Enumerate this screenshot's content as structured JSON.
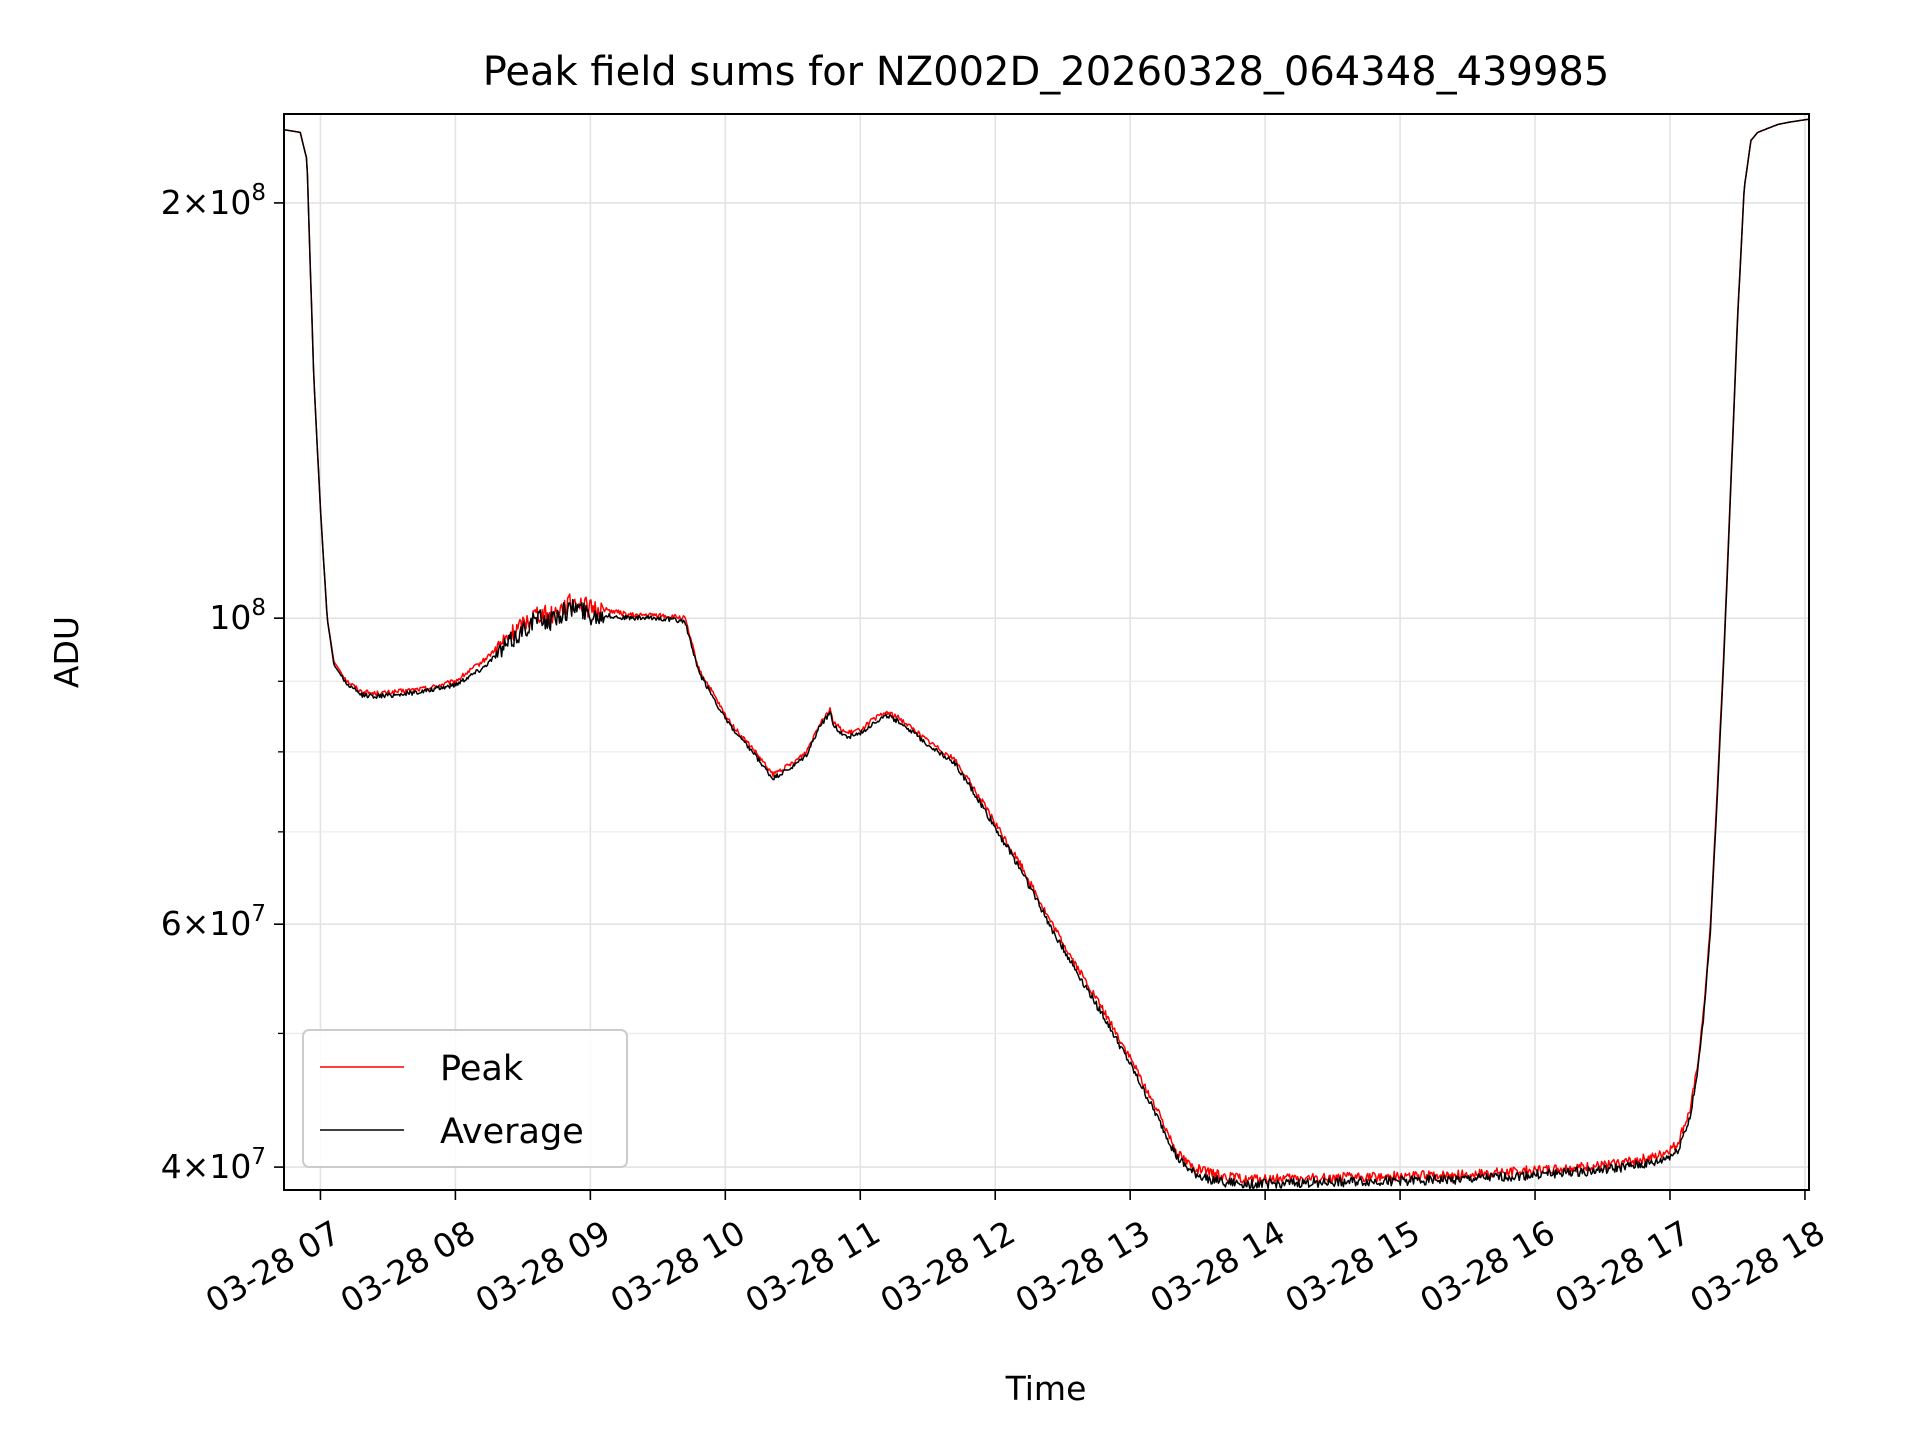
{
  "chart_data": {
    "type": "line",
    "title": "Peak field sums for NZ002D_20260328_064348_439985",
    "xlabel": "Time",
    "ylabel": "ADU",
    "yscale": "log",
    "ylim": [
      38500000,
      232000000
    ],
    "xlim": [
      6.73,
      18.03
    ],
    "grid": true,
    "legend_position": "lower-left",
    "x_ticks": [
      {
        "value": 7,
        "label": "03-28 07"
      },
      {
        "value": 8,
        "label": "03-28 08"
      },
      {
        "value": 9,
        "label": "03-28 09"
      },
      {
        "value": 10,
        "label": "03-28 10"
      },
      {
        "value": 11,
        "label": "03-28 11"
      },
      {
        "value": 12,
        "label": "03-28 12"
      },
      {
        "value": 13,
        "label": "03-28 13"
      },
      {
        "value": 14,
        "label": "03-28 14"
      },
      {
        "value": 15,
        "label": "03-28 15"
      },
      {
        "value": 16,
        "label": "03-28 16"
      },
      {
        "value": 17,
        "label": "03-28 17"
      },
      {
        "value": 18,
        "label": "03-28 18"
      }
    ],
    "y_major_ticks": [
      {
        "value": 40000000,
        "mantissa": "4",
        "exponent": "7"
      },
      {
        "value": 60000000,
        "mantissa": "6",
        "exponent": "7"
      },
      {
        "value": 100000000,
        "mantissa": "",
        "exponent": "8"
      },
      {
        "value": 200000000,
        "mantissa": "2",
        "exponent": "8"
      }
    ],
    "y_minor_ticks": [
      50000000,
      70000000,
      80000000,
      90000000
    ],
    "series": [
      {
        "name": "Peak",
        "color": "#ff0000",
        "x": [
          6.73,
          6.85,
          6.9,
          6.95,
          7.0,
          7.05,
          7.1,
          7.2,
          7.3,
          7.4,
          7.5,
          7.6,
          7.8,
          8.0,
          8.2,
          8.3,
          8.4,
          8.5,
          8.6,
          8.7,
          8.8,
          8.9,
          9.0,
          9.1,
          9.2,
          9.3,
          9.5,
          9.7,
          9.75,
          9.8,
          9.9,
          10.0,
          10.1,
          10.2,
          10.35,
          10.5,
          10.6,
          10.7,
          10.78,
          10.8,
          10.9,
          11.0,
          11.1,
          11.2,
          11.3,
          11.5,
          11.7,
          11.85,
          12.0,
          12.2,
          12.4,
          12.6,
          12.8,
          13.0,
          13.2,
          13.35,
          13.45,
          13.55,
          13.7,
          13.85,
          14.0,
          14.5,
          15.0,
          15.5,
          16.0,
          16.5,
          16.9,
          17.05,
          17.15,
          17.2,
          17.25,
          17.3,
          17.35,
          17.4,
          17.45,
          17.5,
          17.55,
          17.6,
          17.65,
          17.7,
          17.75,
          17.8,
          17.9,
          18.03
        ],
        "y": [
          226000000,
          225000000,
          215000000,
          150000000,
          120000000,
          100000000,
          93000000,
          90000000,
          88500000,
          88200000,
          88300000,
          88500000,
          89000000,
          90000000,
          93000000,
          95000000,
          97000000,
          99000000,
          101000000,
          100500000,
          102000000,
          103000000,
          101500000,
          101500000,
          101000000,
          100500000,
          100500000,
          100000000,
          96000000,
          92000000,
          88500000,
          85000000,
          82500000,
          80500000,
          77000000,
          78500000,
          80000000,
          84000000,
          86000000,
          84000000,
          82500000,
          83000000,
          84500000,
          85500000,
          84500000,
          81500000,
          79000000,
          75000000,
          71000000,
          66000000,
          60500000,
          56000000,
          52000000,
          48000000,
          44000000,
          41000000,
          40100000,
          39700000,
          39400000,
          39200000,
          39200000,
          39300000,
          39400000,
          39500000,
          39800000,
          40100000,
          40700000,
          41500000,
          44000000,
          47000000,
          52000000,
          60000000,
          75000000,
          95000000,
          125000000,
          165000000,
          205000000,
          222000000,
          225000000,
          226000000,
          227000000,
          228000000,
          229000000,
          230000000
        ]
      },
      {
        "name": "Average",
        "color": "#000000",
        "x": [
          6.73,
          6.85,
          6.9,
          6.95,
          7.0,
          7.05,
          7.1,
          7.2,
          7.3,
          7.4,
          7.5,
          7.6,
          7.8,
          8.0,
          8.2,
          8.3,
          8.4,
          8.5,
          8.6,
          8.7,
          8.8,
          8.9,
          9.0,
          9.1,
          9.2,
          9.3,
          9.5,
          9.7,
          9.75,
          9.8,
          9.9,
          10.0,
          10.1,
          10.2,
          10.35,
          10.5,
          10.6,
          10.7,
          10.78,
          10.8,
          10.9,
          11.0,
          11.1,
          11.2,
          11.3,
          11.5,
          11.7,
          11.85,
          12.0,
          12.2,
          12.4,
          12.6,
          12.8,
          13.0,
          13.2,
          13.35,
          13.45,
          13.55,
          13.7,
          13.85,
          14.0,
          14.5,
          15.0,
          15.5,
          16.0,
          16.5,
          16.9,
          17.05,
          17.15,
          17.2,
          17.25,
          17.3,
          17.35,
          17.4,
          17.45,
          17.5,
          17.55,
          17.6,
          17.65,
          17.7,
          17.75,
          17.8,
          17.9,
          18.03
        ],
        "y": [
          226000000,
          225000000,
          215000000,
          150000000,
          120000000,
          100000000,
          92500000,
          89500000,
          88000000,
          87800000,
          87900000,
          88100000,
          88600000,
          89500000,
          92000000,
          94000000,
          96000000,
          98000000,
          100000000,
          99500000,
          101000000,
          102000000,
          100500000,
          100500000,
          100200000,
          100000000,
          100000000,
          99500000,
          95500000,
          91500000,
          88000000,
          84500000,
          82000000,
          80000000,
          76500000,
          78000000,
          79500000,
          83500000,
          85500000,
          83500000,
          82000000,
          82500000,
          84000000,
          85000000,
          84000000,
          81000000,
          78500000,
          74500000,
          70500000,
          65500000,
          60000000,
          55500000,
          51500000,
          47500000,
          43500000,
          40600000,
          39700000,
          39300000,
          39000000,
          38900000,
          38900000,
          39000000,
          39100000,
          39200000,
          39500000,
          39800000,
          40300000,
          41000000,
          43500000,
          46500000,
          51500000,
          59500000,
          74000000,
          94000000,
          124000000,
          164000000,
          205000000,
          222000000,
          225000000,
          226000000,
          227000000,
          228000000,
          229000000,
          230000000
        ]
      }
    ]
  }
}
